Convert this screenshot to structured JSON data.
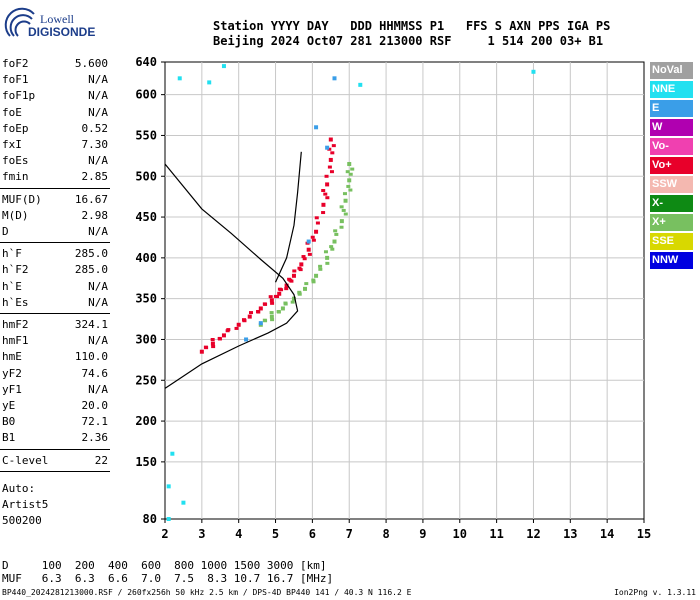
{
  "logo": {
    "line1": "Lowell",
    "line2": "DIGISONDE"
  },
  "header": {
    "line1": "Station YYYY DAY   DDD HHMMSS P1   FFS S AXN PPS IGA PS",
    "line2": "Beijing 2024 Oct07 281 213000 RSF     1 514 200 03+ B1"
  },
  "params": [
    {
      "k": "foF2",
      "v": "5.600"
    },
    {
      "k": "foF1",
      "v": "N/A"
    },
    {
      "k": "foF1p",
      "v": "N/A"
    },
    {
      "k": "foE",
      "v": "N/A"
    },
    {
      "k": "foEp",
      "v": "0.52"
    },
    {
      "k": "fxI",
      "v": "7.30"
    },
    {
      "k": "foEs",
      "v": "N/A"
    },
    {
      "k": "fmin",
      "v": "2.85"
    },
    {
      "k": "MUF(D)",
      "v": "16.67"
    },
    {
      "k": "M(D)",
      "v": "2.98"
    },
    {
      "k": "D",
      "v": "N/A"
    },
    {
      "k": "h`F",
      "v": "285.0"
    },
    {
      "k": "h`F2",
      "v": "285.0"
    },
    {
      "k": "h`E",
      "v": "N/A"
    },
    {
      "k": "h`Es",
      "v": "N/A"
    },
    {
      "k": "hmF2",
      "v": "324.1"
    },
    {
      "k": "hmF1",
      "v": "N/A"
    },
    {
      "k": "hmE",
      "v": "110.0"
    },
    {
      "k": "yF2",
      "v": "74.6"
    },
    {
      "k": "yF1",
      "v": "N/A"
    },
    {
      "k": "yE",
      "v": "20.0"
    },
    {
      "k": "B0",
      "v": "72.1"
    },
    {
      "k": "B1",
      "v": "2.36"
    },
    {
      "k": "C-level",
      "v": "22"
    }
  ],
  "auto": [
    "Auto:",
    "Artist5",
    "500200"
  ],
  "legend": [
    {
      "label": "NoVal",
      "color": "#a0a0a0"
    },
    {
      "label": "NNE",
      "color": "#22e0f0"
    },
    {
      "label": "E",
      "color": "#3a9ee8"
    },
    {
      "label": "W",
      "color": "#b000b0"
    },
    {
      "label": "Vo-",
      "color": "#f040b0"
    },
    {
      "label": "Vo+",
      "color": "#e8002a"
    },
    {
      "label": "SSW",
      "color": "#f4b8b0"
    },
    {
      "label": "X-",
      "color": "#0e8a14"
    },
    {
      "label": "X+",
      "color": "#78c060"
    },
    {
      "label": "SSE",
      "color": "#d8d800"
    },
    {
      "label": "NNW",
      "color": "#0000e0"
    }
  ],
  "muf_table": {
    "row1": "D     100  200  400  600  800 1000 1500 3000 [km]",
    "row2": "MUF   6.3  6.3  6.6  7.0  7.5  8.3 10.7 16.7 [MHz]"
  },
  "footer": "BP440_2024281213000.RSF / 260fx256h 50 kHz 2.5 km / DPS-4D BP440 141 / 40.3 N 116.2 E",
  "version": "Ion2Png v. 1.3.11",
  "chart_data": {
    "type": "scatter",
    "title": "",
    "xlabel": "",
    "ylabel": "",
    "xlim": [
      2,
      15
    ],
    "ylim": [
      80,
      640
    ],
    "x_ticks": [
      2,
      3,
      4,
      5,
      6,
      7,
      8,
      9,
      10,
      11,
      12,
      13,
      14,
      15
    ],
    "y_ticks": [
      80,
      150,
      200,
      250,
      300,
      350,
      400,
      450,
      500,
      550,
      600,
      640
    ],
    "grid": true,
    "series": [
      {
        "name": "Vo+",
        "color": "#e8002a",
        "points": [
          [
            3.0,
            285
          ],
          [
            3.3,
            295
          ],
          [
            3.6,
            305
          ],
          [
            4.0,
            318
          ],
          [
            4.3,
            328
          ],
          [
            4.6,
            338
          ],
          [
            4.9,
            348
          ],
          [
            5.1,
            356
          ],
          [
            5.3,
            366
          ],
          [
            5.5,
            378
          ],
          [
            5.7,
            392
          ],
          [
            5.9,
            410
          ],
          [
            6.1,
            432
          ],
          [
            6.3,
            465
          ],
          [
            6.4,
            490
          ],
          [
            6.5,
            520
          ],
          [
            6.5,
            545
          ]
        ]
      },
      {
        "name": "X+",
        "color": "#78c060",
        "points": [
          [
            4.6,
            318
          ],
          [
            4.9,
            328
          ],
          [
            5.2,
            338
          ],
          [
            5.5,
            350
          ],
          [
            5.8,
            362
          ],
          [
            6.1,
            378
          ],
          [
            6.4,
            400
          ],
          [
            6.6,
            420
          ],
          [
            6.8,
            445
          ],
          [
            6.9,
            470
          ],
          [
            7.0,
            495
          ],
          [
            7.0,
            515
          ]
        ]
      },
      {
        "name": "NNE",
        "color": "#22e0f0",
        "points": [
          [
            2.1,
            80
          ],
          [
            2.1,
            120
          ],
          [
            2.2,
            160
          ],
          [
            2.5,
            100
          ],
          [
            2.4,
            620
          ],
          [
            3.2,
            615
          ],
          [
            3.6,
            635
          ],
          [
            7.3,
            612
          ],
          [
            12.0,
            628
          ]
        ]
      },
      {
        "name": "E",
        "color": "#3a9ee8",
        "points": [
          [
            4.2,
            300
          ],
          [
            4.6,
            320
          ],
          [
            5.9,
            420
          ],
          [
            6.4,
            535
          ],
          [
            6.1,
            560
          ],
          [
            6.6,
            620
          ]
        ]
      }
    ],
    "profile_curve": [
      [
        2,
        240
      ],
      [
        3,
        270
      ],
      [
        4,
        292
      ],
      [
        4.8,
        308
      ],
      [
        5.3,
        320
      ],
      [
        5.6,
        335
      ],
      [
        5.5,
        355
      ],
      [
        5.2,
        375
      ],
      [
        4.6,
        398
      ],
      [
        3.8,
        430
      ],
      [
        3,
        460
      ],
      [
        2,
        515
      ]
    ],
    "virtual_height_curve": [
      [
        5.0,
        370
      ],
      [
        5.3,
        400
      ],
      [
        5.5,
        440
      ],
      [
        5.6,
        480
      ],
      [
        5.7,
        530
      ]
    ]
  }
}
